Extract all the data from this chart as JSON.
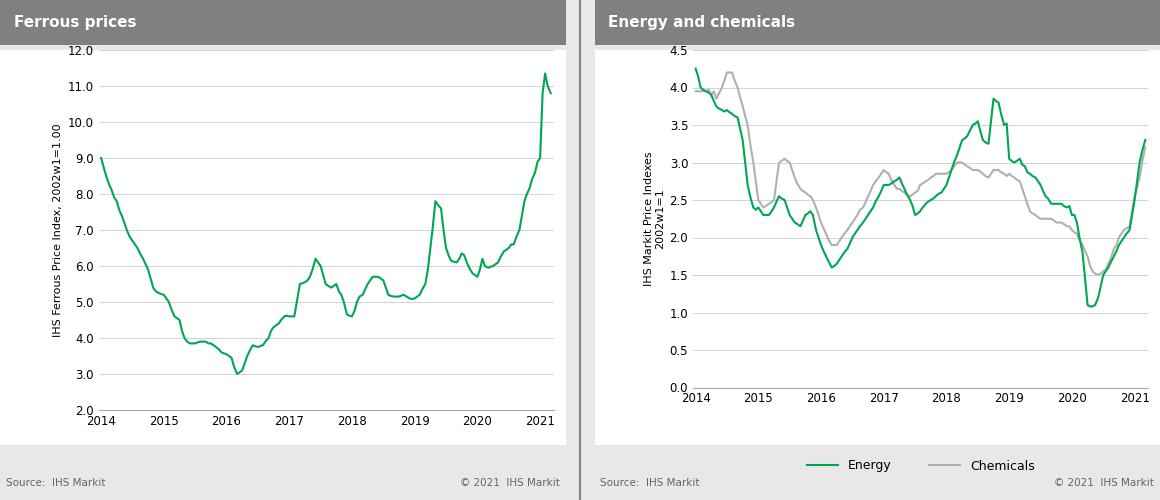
{
  "chart1_title": "Ferrous prices",
  "chart2_title": "Energy and chemicals",
  "chart1_ylabel": "IHS Ferrous Price Index, 2002w1=1.00",
  "chart2_ylabel": "IHS Markit Price Indexes\n2002w1=1",
  "source_left": "Source:  IHS Markit",
  "source_right": "Source:  IHS Markit",
  "copyright": "© 2021  IHS Markit",
  "header_color": "#808080",
  "header_text_color": "#ffffff",
  "background_color": "#e8e8e8",
  "plot_bg_color": "#ffffff",
  "green_color": "#00a651",
  "gray_color": "#b0b0b0",
  "divider_color": "#808080",
  "chart1_ylim": [
    2.0,
    12.0
  ],
  "chart1_yticks": [
    2.0,
    3.0,
    4.0,
    5.0,
    6.0,
    7.0,
    8.0,
    9.0,
    10.0,
    11.0,
    12.0
  ],
  "chart2_ylim": [
    0.0,
    4.5
  ],
  "chart2_yticks": [
    0.0,
    0.5,
    1.0,
    1.5,
    2.0,
    2.5,
    3.0,
    3.5,
    4.0,
    4.5
  ],
  "xtick_years": [
    2014,
    2015,
    2016,
    2017,
    2018,
    2019,
    2020,
    2021
  ],
  "ferrous_x": [
    2014.0,
    2014.04,
    2014.08,
    2014.12,
    2014.17,
    2014.21,
    2014.25,
    2014.29,
    2014.33,
    2014.37,
    2014.42,
    2014.46,
    2014.5,
    2014.54,
    2014.58,
    2014.62,
    2014.67,
    2014.71,
    2014.75,
    2014.79,
    2014.83,
    2014.87,
    2014.92,
    2014.96,
    2015.0,
    2015.04,
    2015.08,
    2015.12,
    2015.17,
    2015.21,
    2015.25,
    2015.29,
    2015.33,
    2015.37,
    2015.42,
    2015.46,
    2015.5,
    2015.54,
    2015.58,
    2015.62,
    2015.67,
    2015.71,
    2015.75,
    2015.79,
    2015.83,
    2015.87,
    2015.92,
    2015.96,
    2016.0,
    2016.04,
    2016.08,
    2016.12,
    2016.17,
    2016.21,
    2016.25,
    2016.29,
    2016.33,
    2016.37,
    2016.42,
    2016.46,
    2016.5,
    2016.54,
    2016.58,
    2016.62,
    2016.67,
    2016.71,
    2016.75,
    2016.79,
    2016.83,
    2016.87,
    2016.92,
    2016.96,
    2017.0,
    2017.04,
    2017.08,
    2017.12,
    2017.17,
    2017.21,
    2017.25,
    2017.29,
    2017.33,
    2017.37,
    2017.42,
    2017.46,
    2017.5,
    2017.54,
    2017.58,
    2017.62,
    2017.67,
    2017.71,
    2017.75,
    2017.79,
    2017.83,
    2017.87,
    2017.92,
    2017.96,
    2018.0,
    2018.04,
    2018.08,
    2018.12,
    2018.17,
    2018.21,
    2018.25,
    2018.29,
    2018.33,
    2018.37,
    2018.42,
    2018.46,
    2018.5,
    2018.54,
    2018.58,
    2018.62,
    2018.67,
    2018.71,
    2018.75,
    2018.79,
    2018.83,
    2018.87,
    2018.92,
    2018.96,
    2019.0,
    2019.04,
    2019.08,
    2019.12,
    2019.17,
    2019.21,
    2019.25,
    2019.29,
    2019.33,
    2019.37,
    2019.42,
    2019.46,
    2019.5,
    2019.54,
    2019.58,
    2019.62,
    2019.67,
    2019.71,
    2019.75,
    2019.79,
    2019.83,
    2019.87,
    2019.92,
    2019.96,
    2020.0,
    2020.04,
    2020.08,
    2020.12,
    2020.17,
    2020.21,
    2020.25,
    2020.29,
    2020.33,
    2020.37,
    2020.42,
    2020.46,
    2020.5,
    2020.54,
    2020.58,
    2020.62,
    2020.67,
    2020.71,
    2020.75,
    2020.79,
    2020.83,
    2020.87,
    2020.92,
    2020.96,
    2021.0,
    2021.04,
    2021.08,
    2021.12,
    2021.17
  ],
  "ferrous_y": [
    9.0,
    8.75,
    8.5,
    8.3,
    8.1,
    7.9,
    7.8,
    7.55,
    7.4,
    7.2,
    6.95,
    6.8,
    6.7,
    6.6,
    6.5,
    6.35,
    6.2,
    6.05,
    5.9,
    5.65,
    5.4,
    5.3,
    5.25,
    5.22,
    5.2,
    5.1,
    5.0,
    4.8,
    4.6,
    4.55,
    4.5,
    4.2,
    4.0,
    3.9,
    3.85,
    3.85,
    3.85,
    3.88,
    3.9,
    3.9,
    3.9,
    3.85,
    3.85,
    3.8,
    3.75,
    3.7,
    3.6,
    3.57,
    3.55,
    3.5,
    3.45,
    3.2,
    3.0,
    3.05,
    3.1,
    3.3,
    3.5,
    3.65,
    3.8,
    3.77,
    3.75,
    3.78,
    3.8,
    3.9,
    4.0,
    4.2,
    4.3,
    4.35,
    4.4,
    4.5,
    4.6,
    4.62,
    4.6,
    4.6,
    4.6,
    5.0,
    5.5,
    5.52,
    5.55,
    5.6,
    5.7,
    5.9,
    6.2,
    6.1,
    6.0,
    5.75,
    5.5,
    5.45,
    5.4,
    5.45,
    5.5,
    5.3,
    5.2,
    5.0,
    4.65,
    4.62,
    4.6,
    4.75,
    5.0,
    5.15,
    5.2,
    5.35,
    5.5,
    5.6,
    5.7,
    5.7,
    5.7,
    5.65,
    5.6,
    5.4,
    5.2,
    5.17,
    5.15,
    5.15,
    5.15,
    5.18,
    5.2,
    5.15,
    5.1,
    5.08,
    5.1,
    5.15,
    5.2,
    5.35,
    5.5,
    5.9,
    6.5,
    7.1,
    7.8,
    7.7,
    7.6,
    7.0,
    6.5,
    6.3,
    6.15,
    6.12,
    6.1,
    6.2,
    6.35,
    6.3,
    6.1,
    5.95,
    5.8,
    5.75,
    5.7,
    5.9,
    6.2,
    6.0,
    5.95,
    5.98,
    6.0,
    6.05,
    6.1,
    6.25,
    6.4,
    6.45,
    6.5,
    6.6,
    6.6,
    6.8,
    7.0,
    7.4,
    7.8,
    8.0,
    8.15,
    8.4,
    8.6,
    8.9,
    9.0,
    10.8,
    11.35,
    11.0,
    10.8
  ],
  "energy_x": [
    2014.0,
    2014.04,
    2014.08,
    2014.12,
    2014.17,
    2014.21,
    2014.25,
    2014.29,
    2014.33,
    2014.37,
    2014.42,
    2014.46,
    2014.5,
    2014.54,
    2014.58,
    2014.62,
    2014.67,
    2014.71,
    2014.75,
    2014.79,
    2014.83,
    2014.87,
    2014.92,
    2014.96,
    2015.0,
    2015.04,
    2015.08,
    2015.12,
    2015.17,
    2015.21,
    2015.25,
    2015.29,
    2015.33,
    2015.37,
    2015.42,
    2015.46,
    2015.5,
    2015.54,
    2015.58,
    2015.62,
    2015.67,
    2015.71,
    2015.75,
    2015.79,
    2015.83,
    2015.87,
    2015.92,
    2015.96,
    2016.0,
    2016.04,
    2016.08,
    2016.12,
    2016.17,
    2016.21,
    2016.25,
    2016.29,
    2016.33,
    2016.37,
    2016.42,
    2016.46,
    2016.5,
    2016.54,
    2016.58,
    2016.62,
    2016.67,
    2016.71,
    2016.75,
    2016.79,
    2016.83,
    2016.87,
    2016.92,
    2016.96,
    2017.0,
    2017.04,
    2017.08,
    2017.12,
    2017.17,
    2017.21,
    2017.25,
    2017.29,
    2017.33,
    2017.37,
    2017.42,
    2017.46,
    2017.5,
    2017.54,
    2017.58,
    2017.62,
    2017.67,
    2017.71,
    2017.75,
    2017.79,
    2017.83,
    2017.87,
    2017.92,
    2017.96,
    2018.0,
    2018.04,
    2018.08,
    2018.12,
    2018.17,
    2018.21,
    2018.25,
    2018.29,
    2018.33,
    2018.37,
    2018.42,
    2018.46,
    2018.5,
    2018.54,
    2018.58,
    2018.62,
    2018.67,
    2018.71,
    2018.75,
    2018.79,
    2018.83,
    2018.87,
    2018.92,
    2018.96,
    2019.0,
    2019.04,
    2019.08,
    2019.12,
    2019.17,
    2019.21,
    2019.25,
    2019.29,
    2019.33,
    2019.37,
    2019.42,
    2019.46,
    2019.5,
    2019.54,
    2019.58,
    2019.62,
    2019.67,
    2019.71,
    2019.75,
    2019.79,
    2019.83,
    2019.87,
    2019.92,
    2019.96,
    2020.0,
    2020.04,
    2020.08,
    2020.12,
    2020.17,
    2020.21,
    2020.25,
    2020.29,
    2020.33,
    2020.37,
    2020.42,
    2020.46,
    2020.5,
    2020.54,
    2020.58,
    2020.62,
    2020.67,
    2020.71,
    2020.75,
    2020.79,
    2020.83,
    2020.87,
    2020.92,
    2020.96,
    2021.0,
    2021.04,
    2021.08,
    2021.12,
    2021.17
  ],
  "energy_y": [
    4.25,
    4.15,
    4.0,
    3.97,
    3.95,
    3.93,
    3.9,
    3.82,
    3.75,
    3.72,
    3.7,
    3.68,
    3.7,
    3.67,
    3.65,
    3.62,
    3.6,
    3.45,
    3.3,
    3.0,
    2.7,
    2.55,
    2.4,
    2.37,
    2.4,
    2.35,
    2.3,
    2.3,
    2.3,
    2.35,
    2.4,
    2.48,
    2.55,
    2.52,
    2.5,
    2.4,
    2.3,
    2.25,
    2.2,
    2.18,
    2.15,
    2.22,
    2.3,
    2.32,
    2.35,
    2.3,
    2.1,
    2.0,
    1.9,
    1.82,
    1.75,
    1.68,
    1.6,
    1.62,
    1.65,
    1.7,
    1.75,
    1.8,
    1.85,
    1.92,
    2.0,
    2.05,
    2.1,
    2.15,
    2.2,
    2.25,
    2.3,
    2.35,
    2.4,
    2.48,
    2.55,
    2.62,
    2.7,
    2.7,
    2.7,
    2.72,
    2.75,
    2.77,
    2.8,
    2.72,
    2.65,
    2.57,
    2.5,
    2.42,
    2.3,
    2.32,
    2.35,
    2.4,
    2.45,
    2.48,
    2.5,
    2.52,
    2.55,
    2.58,
    2.6,
    2.65,
    2.7,
    2.8,
    2.9,
    3.0,
    3.1,
    3.2,
    3.3,
    3.32,
    3.35,
    3.42,
    3.5,
    3.52,
    3.55,
    3.42,
    3.3,
    3.27,
    3.25,
    3.55,
    3.85,
    3.82,
    3.8,
    3.65,
    3.5,
    3.52,
    3.05,
    3.02,
    3.0,
    3.02,
    3.05,
    2.97,
    2.95,
    2.87,
    2.85,
    2.82,
    2.8,
    2.75,
    2.7,
    2.62,
    2.55,
    2.52,
    2.45,
    2.45,
    2.45,
    2.45,
    2.45,
    2.42,
    2.4,
    2.42,
    2.3,
    2.3,
    2.2,
    2.0,
    1.8,
    1.45,
    1.1,
    1.08,
    1.08,
    1.1,
    1.2,
    1.35,
    1.5,
    1.55,
    1.6,
    1.67,
    1.75,
    1.82,
    1.9,
    1.95,
    2.0,
    2.05,
    2.1,
    2.3,
    2.5,
    2.75,
    3.0,
    3.15,
    3.3
  ],
  "chemicals_y": [
    3.95,
    3.95,
    3.95,
    3.95,
    3.95,
    3.97,
    3.9,
    3.95,
    3.85,
    3.92,
    4.0,
    4.1,
    4.2,
    4.2,
    4.2,
    4.1,
    4.0,
    3.87,
    3.75,
    3.62,
    3.5,
    3.25,
    3.0,
    2.75,
    2.5,
    2.45,
    2.4,
    2.42,
    2.45,
    2.47,
    2.5,
    2.75,
    3.0,
    3.02,
    3.05,
    3.02,
    3.0,
    2.9,
    2.8,
    2.72,
    2.65,
    2.62,
    2.6,
    2.57,
    2.55,
    2.5,
    2.4,
    2.3,
    2.2,
    2.12,
    2.05,
    1.97,
    1.9,
    1.9,
    1.9,
    1.95,
    2.0,
    2.05,
    2.1,
    2.15,
    2.2,
    2.25,
    2.3,
    2.37,
    2.4,
    2.47,
    2.55,
    2.62,
    2.7,
    2.75,
    2.8,
    2.85,
    2.9,
    2.87,
    2.85,
    2.77,
    2.7,
    2.65,
    2.65,
    2.62,
    2.6,
    2.57,
    2.55,
    2.57,
    2.6,
    2.62,
    2.7,
    2.72,
    2.75,
    2.77,
    2.8,
    2.82,
    2.85,
    2.85,
    2.85,
    2.85,
    2.85,
    2.87,
    2.9,
    2.95,
    3.0,
    3.0,
    3.0,
    2.97,
    2.95,
    2.93,
    2.9,
    2.9,
    2.9,
    2.88,
    2.85,
    2.82,
    2.8,
    2.85,
    2.9,
    2.9,
    2.9,
    2.87,
    2.85,
    2.82,
    2.85,
    2.82,
    2.8,
    2.77,
    2.75,
    2.65,
    2.55,
    2.45,
    2.35,
    2.32,
    2.3,
    2.27,
    2.25,
    2.25,
    2.25,
    2.25,
    2.25,
    2.23,
    2.2,
    2.2,
    2.2,
    2.18,
    2.15,
    2.15,
    2.1,
    2.07,
    2.05,
    1.97,
    1.9,
    1.82,
    1.75,
    1.62,
    1.55,
    1.52,
    1.5,
    1.52,
    1.55,
    1.57,
    1.65,
    1.72,
    1.85,
    1.9,
    2.0,
    2.05,
    2.1,
    2.12,
    2.15,
    2.35,
    2.55,
    2.67,
    2.8,
    3.0,
    3.2
  ]
}
